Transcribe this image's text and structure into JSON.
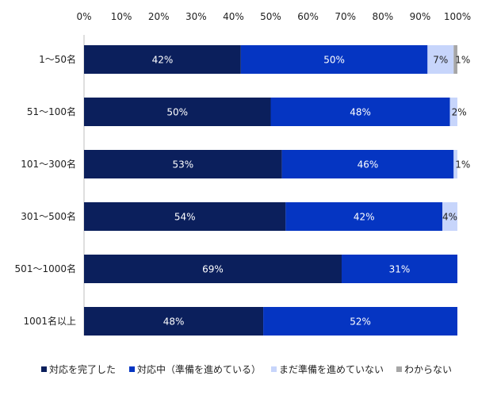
{
  "chart_data": {
    "type": "bar",
    "orientation": "horizontal",
    "stacked": true,
    "categories": [
      "1～50名",
      "51～100名",
      "101～300名",
      "301～500名",
      "501～1000名",
      "1001名以上"
    ],
    "series": [
      {
        "name": "対応を完了した",
        "color": "#0b1f5c",
        "values": [
          42,
          50,
          53,
          54,
          69,
          48
        ],
        "labels": [
          "42%",
          "50%",
          "53%",
          "54%",
          "69%",
          "48%"
        ]
      },
      {
        "name": "対応中（準備を進めている）",
        "color": "#0535c2",
        "values": [
          50,
          48,
          46,
          42,
          31,
          52
        ],
        "labels": [
          "50%",
          "48%",
          "46%",
          "42%",
          "31%",
          "52%"
        ]
      },
      {
        "name": "まだ準備を進めていない",
        "color": "#c7d5fb",
        "values": [
          7,
          2,
          1,
          4,
          0,
          0
        ],
        "labels": [
          "7%",
          "2%",
          "1%",
          "4%",
          "",
          ""
        ]
      },
      {
        "name": "わからない",
        "color": "#a6a6a6",
        "values": [
          1,
          0,
          0,
          0,
          0,
          0
        ],
        "labels": [
          "1%",
          "",
          "",
          "",
          "",
          ""
        ]
      }
    ],
    "xlim": [
      0,
      100
    ],
    "xticks": [
      "0%",
      "10%",
      "20%",
      "30%",
      "40%",
      "50%",
      "60%",
      "70%",
      "80%",
      "90%",
      "100%"
    ],
    "xaxis_position": "top",
    "grid": false,
    "legend": "bottom"
  }
}
